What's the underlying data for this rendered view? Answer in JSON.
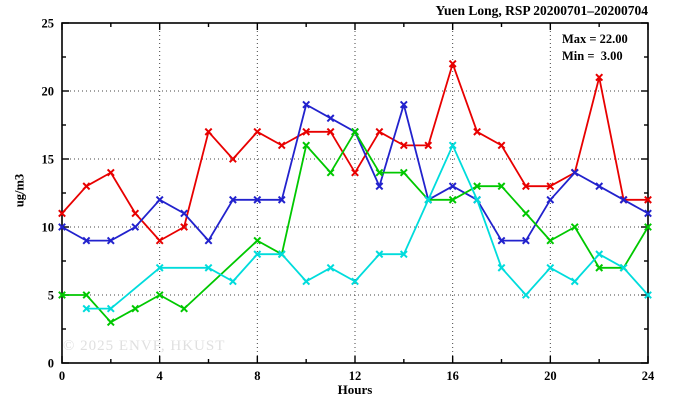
{
  "title": "Yuen Long, RSP 20200701–20200704",
  "stats": {
    "max_label": "Max = 22.00",
    "min_label": "Min =  3.00"
  },
  "watermark": "© 2025 ENVF, HKUST",
  "chart_data": {
    "type": "line",
    "title": "Yuen Long, RSP 20200701–20200704",
    "xlabel": "Hours",
    "ylabel": "ug/m3",
    "xlim": [
      0,
      24
    ],
    "ylim": [
      0,
      25
    ],
    "x_major_ticks": [
      0,
      4,
      8,
      12,
      16,
      20,
      24
    ],
    "x_minor_step": 2,
    "y_major_ticks": [
      0,
      5,
      10,
      15,
      20,
      25
    ],
    "y_minor_step": 2.5,
    "x_gridlines": [
      4,
      8,
      12,
      16,
      20
    ],
    "y_gridlines": [
      5,
      10,
      15,
      20
    ],
    "grid_style": "dotted",
    "legend_position": "none",
    "max_value": 22.0,
    "min_value": 3.0,
    "marker": "x",
    "series": [
      {
        "name": "series-red",
        "color": "#e80000",
        "points": [
          [
            0,
            11
          ],
          [
            1,
            13
          ],
          [
            2,
            14
          ],
          [
            3,
            11
          ],
          [
            4,
            9
          ],
          [
            5,
            10
          ],
          [
            6,
            17
          ],
          [
            7,
            15
          ],
          [
            8,
            17
          ],
          [
            9,
            16
          ],
          [
            10,
            17
          ],
          [
            11,
            17
          ],
          [
            12,
            14
          ],
          [
            13,
            17
          ],
          [
            14,
            16
          ],
          [
            15,
            16
          ],
          [
            16,
            22
          ],
          [
            17,
            17
          ],
          [
            18,
            16
          ],
          [
            19,
            13
          ],
          [
            20,
            13
          ],
          [
            21,
            14
          ],
          [
            22,
            21
          ],
          [
            23,
            12
          ],
          [
            24,
            12
          ]
        ]
      },
      {
        "name": "series-blue",
        "color": "#2222cd",
        "points": [
          [
            0,
            10
          ],
          [
            1,
            9
          ],
          [
            2,
            9
          ],
          [
            3,
            10
          ],
          [
            4,
            12
          ],
          [
            5,
            11
          ],
          [
            6,
            9
          ],
          [
            7,
            12
          ],
          [
            8,
            12
          ],
          [
            9,
            12
          ],
          [
            10,
            19
          ],
          [
            11,
            18
          ],
          [
            12,
            17
          ],
          [
            13,
            13
          ],
          [
            14,
            19
          ],
          [
            15,
            12
          ],
          [
            16,
            13
          ],
          [
            17,
            12
          ],
          [
            18,
            9
          ],
          [
            19,
            9
          ],
          [
            20,
            12
          ],
          [
            21,
            14
          ],
          [
            22,
            13
          ],
          [
            23,
            12
          ],
          [
            24,
            11
          ]
        ]
      },
      {
        "name": "series-green",
        "color": "#00c800",
        "points": [
          [
            0,
            5
          ],
          [
            1,
            5
          ],
          [
            2,
            3
          ],
          [
            3,
            4
          ],
          [
            4,
            5
          ],
          [
            5,
            4
          ],
          [
            8,
            9
          ],
          [
            9,
            8
          ],
          [
            10,
            16
          ],
          [
            11,
            14
          ],
          [
            12,
            17
          ],
          [
            13,
            14
          ],
          [
            14,
            14
          ],
          [
            15,
            12
          ],
          [
            16,
            12
          ],
          [
            17,
            13
          ],
          [
            18,
            13
          ],
          [
            19,
            11
          ],
          [
            20,
            9
          ],
          [
            21,
            10
          ],
          [
            22,
            7
          ],
          [
            23,
            7
          ],
          [
            24,
            10
          ]
        ]
      },
      {
        "name": "series-cyan",
        "color": "#00dcdc",
        "points": [
          [
            1,
            4
          ],
          [
            2,
            4
          ],
          [
            4,
            7
          ],
          [
            6,
            7
          ],
          [
            7,
            6
          ],
          [
            8,
            8
          ],
          [
            9,
            8
          ],
          [
            10,
            6
          ],
          [
            11,
            7
          ],
          [
            12,
            6
          ],
          [
            13,
            8
          ],
          [
            14,
            8
          ],
          [
            15,
            12
          ],
          [
            16,
            16
          ],
          [
            17,
            12
          ],
          [
            18,
            7
          ],
          [
            19,
            5
          ],
          [
            20,
            7
          ],
          [
            21,
            6
          ],
          [
            22,
            8
          ],
          [
            23,
            7
          ],
          [
            24,
            5
          ]
        ]
      }
    ]
  }
}
